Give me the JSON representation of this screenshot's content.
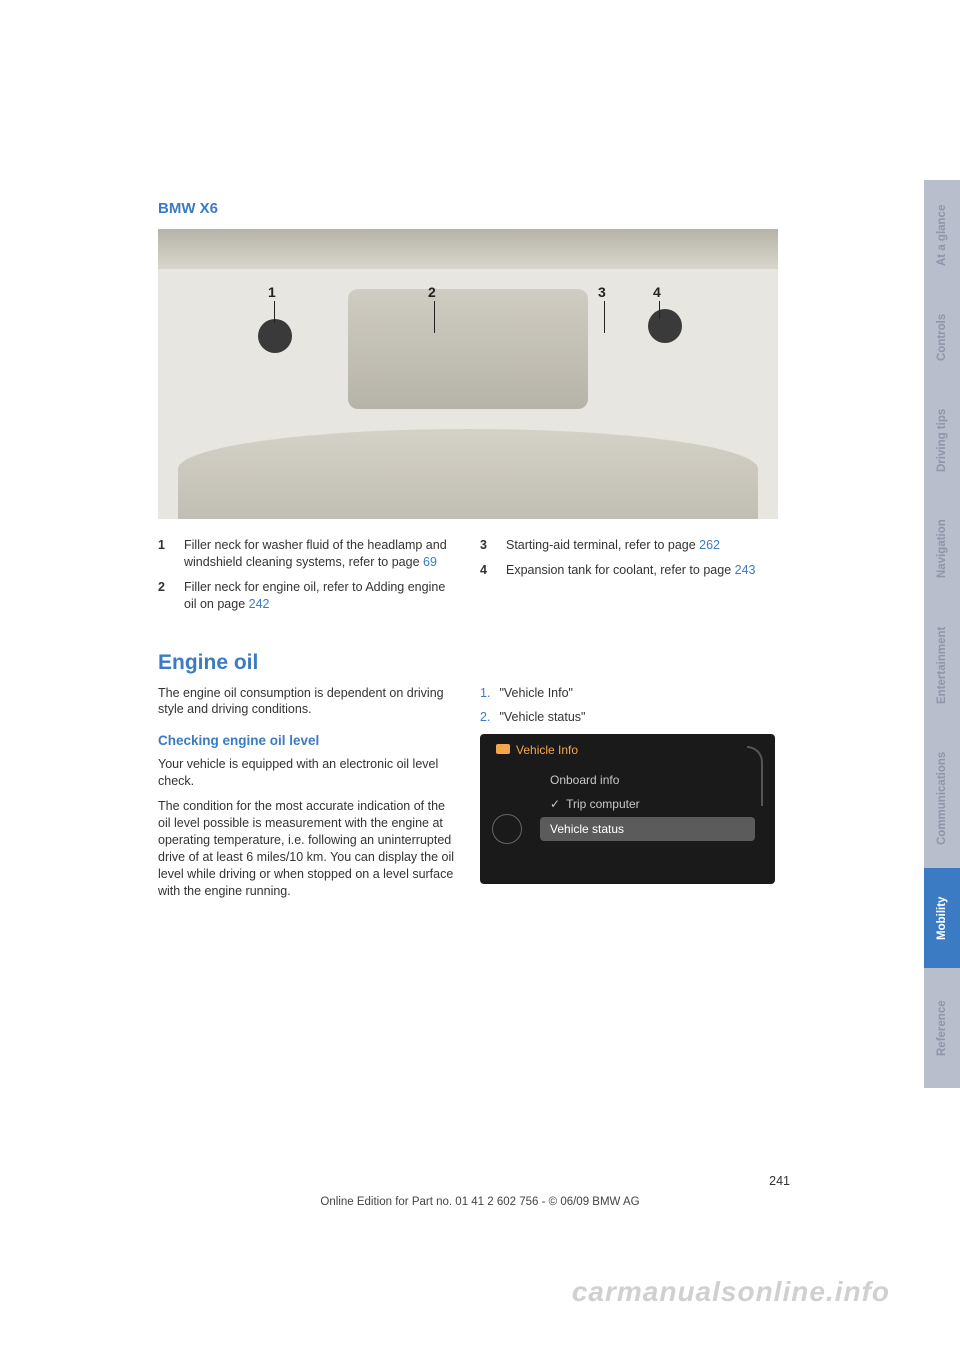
{
  "title": "BMW X6",
  "engine_labels": {
    "l1": "1",
    "l2": "2",
    "l3": "3",
    "l4": "4"
  },
  "legend_left": [
    {
      "n": "1",
      "text_a": "Filler neck for washer fluid of the headlamp and windshield cleaning systems, refer to page ",
      "link": "69"
    },
    {
      "n": "2",
      "text_a": "Filler neck for engine oil, refer to Adding engine oil on page ",
      "link": "242"
    }
  ],
  "legend_right": [
    {
      "n": "3",
      "text_a": "Starting-aid terminal, refer to page ",
      "link": "262"
    },
    {
      "n": "4",
      "text_a": "Expansion tank for coolant, refer to page ",
      "link": "243"
    }
  ],
  "section_heading": "Engine oil",
  "intro_text": "The engine oil consumption is dependent on driving style and driving conditions.",
  "subheading": "Checking engine oil level",
  "para1": "Your vehicle is equipped with an electronic oil level check.",
  "para2": "The condition for the most accurate indication of the oil level possible is measurement with the engine at operating temperature, i.e. following an uninterrupted drive of at least 6 miles/10 km. You can display the oil level while driving or when stopped on a level surface with the engine running.",
  "steps": [
    {
      "n": "1.",
      "text": "\"Vehicle Info\""
    },
    {
      "n": "2.",
      "text": "\"Vehicle status\""
    }
  ],
  "idrive": {
    "header": "Vehicle Info",
    "items": [
      "Onboard info",
      "Trip computer",
      "Vehicle status"
    ]
  },
  "tabs": [
    {
      "label": "At a glance",
      "cls": "gray t-gla"
    },
    {
      "label": "Controls",
      "cls": "gray t-ctl"
    },
    {
      "label": "Driving tips",
      "cls": "gray t-drv"
    },
    {
      "label": "Navigation",
      "cls": "gray t-nav"
    },
    {
      "label": "Entertainment",
      "cls": "gray t-ent"
    },
    {
      "label": "Communications",
      "cls": "gray t-com"
    },
    {
      "label": "Mobility",
      "cls": "blue t-mob"
    },
    {
      "label": "Reference",
      "cls": "gray t-ref"
    }
  ],
  "page_number": "241",
  "edition_line": "Online Edition for Part no. 01 41 2 602 756 - © 06/09 BMW AG",
  "watermark": "carmanualsonline.info"
}
